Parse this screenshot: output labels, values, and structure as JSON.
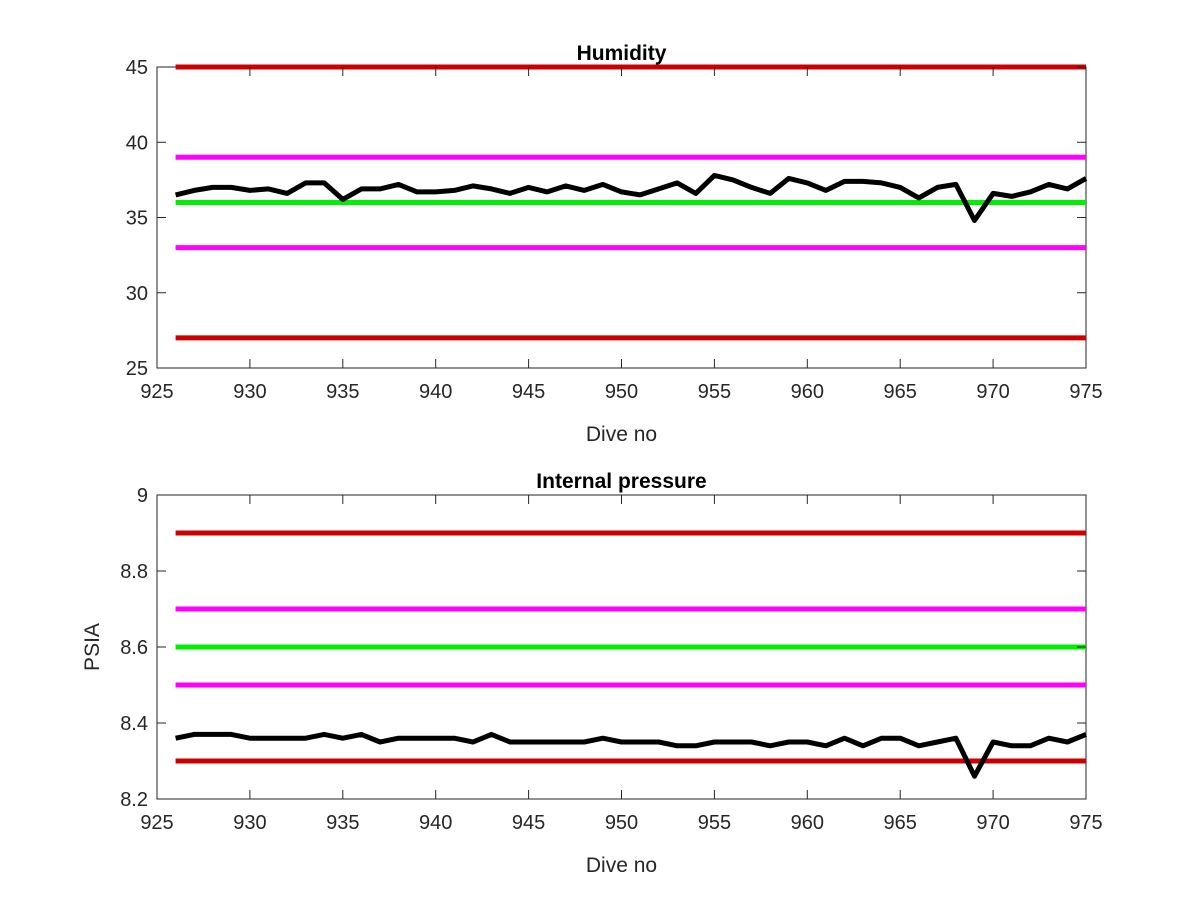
{
  "chart_data": [
    {
      "type": "line",
      "title": "Humidity",
      "xlabel": "Dive no",
      "ylabel": "",
      "xlim": [
        925,
        975
      ],
      "ylim": [
        25,
        45
      ],
      "xticks": [
        925,
        930,
        935,
        940,
        945,
        950,
        955,
        960,
        965,
        970,
        975
      ],
      "yticks": [
        25,
        30,
        35,
        40,
        45
      ],
      "grid": false,
      "reference_lines": [
        {
          "y": 45,
          "color": "#cc0000"
        },
        {
          "y": 39,
          "color": "#ff00ff"
        },
        {
          "y": 36,
          "color": "#00ee00"
        },
        {
          "y": 33,
          "color": "#ff00ff"
        },
        {
          "y": 27,
          "color": "#cc0000"
        }
      ],
      "series": [
        {
          "color": "#000000",
          "x": [
            926,
            927,
            928,
            929,
            930,
            931,
            932,
            933,
            934,
            935,
            936,
            937,
            938,
            939,
            940,
            941,
            942,
            943,
            944,
            945,
            946,
            947,
            948,
            949,
            950,
            951,
            952,
            953,
            954,
            955,
            956,
            957,
            958,
            959,
            960,
            961,
            962,
            963,
            964,
            965,
            966,
            967,
            968,
            969,
            970,
            971,
            972,
            973,
            974,
            975
          ],
          "y": [
            36.5,
            36.8,
            37.0,
            37.0,
            36.8,
            36.9,
            36.6,
            37.3,
            37.3,
            36.2,
            36.9,
            36.9,
            37.2,
            36.7,
            36.7,
            36.8,
            37.1,
            36.9,
            36.6,
            37.0,
            36.7,
            37.1,
            36.8,
            37.2,
            36.7,
            36.5,
            36.9,
            37.3,
            36.6,
            37.8,
            37.5,
            37.0,
            36.6,
            37.6,
            37.3,
            36.8,
            37.4,
            37.4,
            37.3,
            37.0,
            36.3,
            37.0,
            37.2,
            34.8,
            36.6,
            36.4,
            36.7,
            37.2,
            36.9,
            37.6
          ]
        }
      ]
    },
    {
      "type": "line",
      "title": "Internal pressure",
      "xlabel": "Dive no",
      "ylabel": "PSIA",
      "xlim": [
        925,
        975
      ],
      "ylim": [
        8.2,
        9.0
      ],
      "xticks": [
        925,
        930,
        935,
        940,
        945,
        950,
        955,
        960,
        965,
        970,
        975
      ],
      "yticks": [
        "8.2",
        "8.4",
        "8.6",
        "8.8",
        "9"
      ],
      "grid": false,
      "reference_lines": [
        {
          "y": 8.9,
          "color": "#cc0000"
        },
        {
          "y": 8.7,
          "color": "#ff00ff"
        },
        {
          "y": 8.6,
          "color": "#00ee00"
        },
        {
          "y": 8.5,
          "color": "#ff00ff"
        },
        {
          "y": 8.3,
          "color": "#cc0000"
        }
      ],
      "series": [
        {
          "color": "#000000",
          "x": [
            926,
            927,
            928,
            929,
            930,
            931,
            932,
            933,
            934,
            935,
            936,
            937,
            938,
            939,
            940,
            941,
            942,
            943,
            944,
            945,
            946,
            947,
            948,
            949,
            950,
            951,
            952,
            953,
            954,
            955,
            956,
            957,
            958,
            959,
            960,
            961,
            962,
            963,
            964,
            965,
            966,
            967,
            968,
            969,
            970,
            971,
            972,
            973,
            974,
            975
          ],
          "y": [
            8.36,
            8.37,
            8.37,
            8.37,
            8.36,
            8.36,
            8.36,
            8.36,
            8.37,
            8.36,
            8.37,
            8.35,
            8.36,
            8.36,
            8.36,
            8.36,
            8.35,
            8.37,
            8.35,
            8.35,
            8.35,
            8.35,
            8.35,
            8.36,
            8.35,
            8.35,
            8.35,
            8.34,
            8.34,
            8.35,
            8.35,
            8.35,
            8.34,
            8.35,
            8.35,
            8.34,
            8.36,
            8.34,
            8.36,
            8.36,
            8.34,
            8.35,
            8.36,
            8.26,
            8.35,
            8.34,
            8.34,
            8.36,
            8.35,
            8.37
          ]
        }
      ]
    }
  ]
}
